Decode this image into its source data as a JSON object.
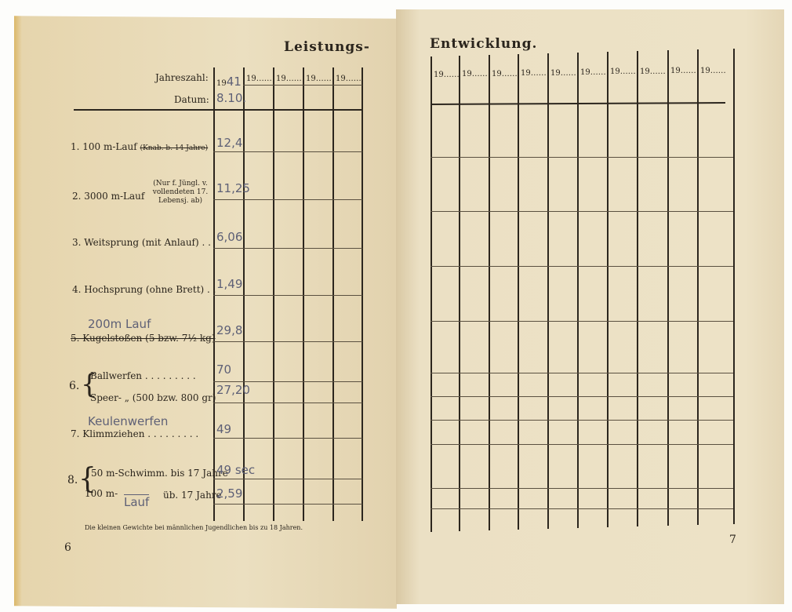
{
  "left_page": {
    "title": "Leistungs-",
    "header": {
      "year_label": "Jahreszahl:",
      "date_label": "Datum:"
    },
    "year_prefix": "19",
    "years": [
      "41",
      "",
      "",
      "",
      ""
    ],
    "dates": [
      "8.10.",
      "",
      "",
      "",
      ""
    ],
    "events": [
      {
        "label": "1. 100 m-Lauf",
        "note": "(Knab. b. 14 Jahre)",
        "value": "12,4"
      },
      {
        "label": "2. 3000 m-Lauf",
        "note": "(Nur f. Jüngl. v. vollendeten 17. Lebensj. ab)",
        "value": "11,25"
      },
      {
        "label": "3. Weitsprung (mit Anlauf) . .",
        "value": "6,06"
      },
      {
        "label": "4. Hochsprung (ohne Brett) . .",
        "value": "1,49"
      },
      {
        "label": "5. Kugelstoßen (5 bzw. 7½ kg)",
        "handwritten": "200m Lauf",
        "value": "29,8"
      },
      {
        "label": "Ballwerfen . . . . . . . . .",
        "value": "70"
      },
      {
        "label": "Speer- „ (500 bzw. 800 gr)",
        "value": "27,20"
      },
      {
        "label": "7. Klimmziehen . . . . . . . . .",
        "handwritten": "Keulenwerfen",
        "value": "49"
      },
      {
        "label": "50 m-Schwimm. bis 17 Jahre",
        "value": "49 sec"
      },
      {
        "label": "100 m-",
        "handwritten": "Lauf",
        "note": "üb. 17 Jahre",
        "value": "2,59"
      }
    ],
    "group6": "6.",
    "group8": "8.",
    "footnote": "Die kleinen Gewichte bei männlichen Jugendlichen bis zu 18 Jahren.",
    "page_number": "6"
  },
  "right_page": {
    "title": "Entwicklung.",
    "year_prefix": "19",
    "column_count": 10,
    "page_number": "7"
  },
  "colors": {
    "paper": "#e9dcbb",
    "ink": "#2c261e",
    "pencil": "#5e6076"
  }
}
